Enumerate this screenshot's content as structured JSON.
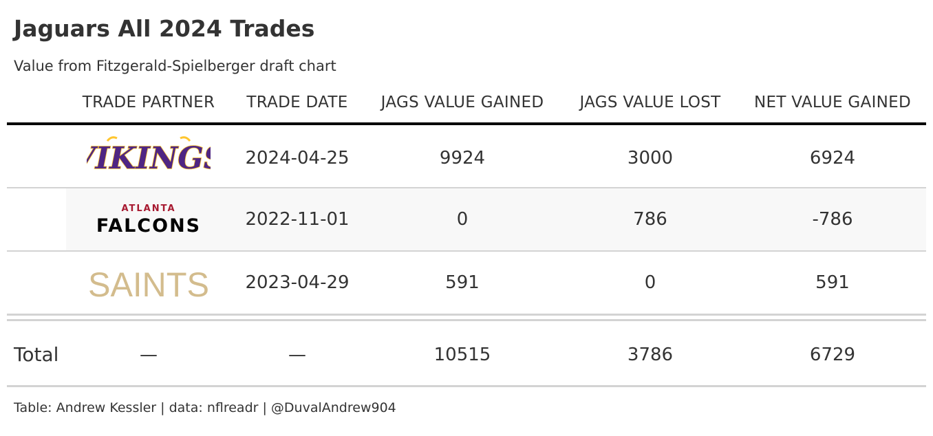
{
  "header": {
    "title": "Jaguars All 2024 Trades",
    "subtitle": "Value from Fitzgerald-Spielberger draft chart"
  },
  "chart_data": {
    "type": "table",
    "columns": [
      "TRADE PARTNER",
      "TRADE DATE",
      "JAGS VALUE GAINED",
      "JAGS VALUE LOST",
      "NET VALUE GAINED"
    ],
    "rows": [
      {
        "partner_logo": "vikings-logo",
        "partner_text": [
          "VIKINGS"
        ],
        "date": "2024-04-25",
        "gained": "9924",
        "lost": "3000",
        "net": "6924"
      },
      {
        "partner_logo": "falcons-logo",
        "partner_text": [
          "ATLANTA",
          "FALCONS"
        ],
        "date": "2022-11-01",
        "gained": "0",
        "lost": "786",
        "net": "-786"
      },
      {
        "partner_logo": "saints-logo",
        "partner_text": [
          "SAINTS"
        ],
        "date": "2023-04-29",
        "gained": "591",
        "lost": "0",
        "net": "591"
      }
    ],
    "total": {
      "label": "Total",
      "partner": "—",
      "date": "—",
      "gained": "10515",
      "lost": "3786",
      "net": "6729"
    }
  },
  "footer": {
    "source": "Table: Andrew Kessler | data: nflreadr | @DuvalAndrew904"
  },
  "colors": {
    "vikings_purple": "#4f2683",
    "vikings_gold": "#ffc62f",
    "falcons_red": "#a71930",
    "falcons_black": "#000000",
    "saints_gold": "#d3bc8d"
  }
}
